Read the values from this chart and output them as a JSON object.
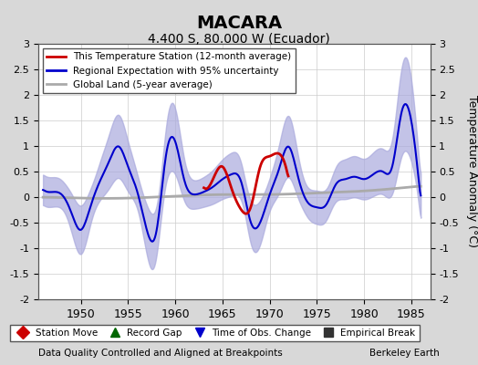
{
  "title": "MACARA",
  "subtitle": "4.400 S, 80.000 W (Ecuador)",
  "ylabel": "Temperature Anomaly (°C)",
  "xlabel_bottom_left": "Data Quality Controlled and Aligned at Breakpoints",
  "xlabel_bottom_right": "Berkeley Earth",
  "ylim": [
    -2,
    3
  ],
  "xlim": [
    1945.5,
    1987
  ],
  "yticks": [
    -2,
    -1.5,
    -1,
    -0.5,
    0,
    0.5,
    1,
    1.5,
    2,
    2.5,
    3
  ],
  "xticks": [
    1950,
    1955,
    1960,
    1965,
    1970,
    1975,
    1980,
    1985
  ],
  "bg_color": "#e8e8e8",
  "plot_bg_color": "#ffffff",
  "blue_line_color": "#0000cc",
  "red_line_color": "#cc0000",
  "gray_line_color": "#aaaaaa",
  "fill_color": "#aaaadd",
  "legend1_items": [
    {
      "label": "This Temperature Station (12-month average)",
      "color": "#cc0000",
      "lw": 2
    },
    {
      "label": "Regional Expectation with 95% uncertainty",
      "color": "#0000cc",
      "lw": 2
    },
    {
      "label": "Global Land (5-year average)",
      "color": "#aaaaaa",
      "lw": 2
    }
  ],
  "legend2_items": [
    {
      "label": "Station Move",
      "marker": "D",
      "color": "#cc0000"
    },
    {
      "label": "Record Gap",
      "marker": "^",
      "color": "#006600"
    },
    {
      "label": "Time of Obs. Change",
      "marker": "v",
      "color": "#0000cc"
    },
    {
      "label": "Empirical Break",
      "marker": "s",
      "color": "#333333"
    }
  ]
}
